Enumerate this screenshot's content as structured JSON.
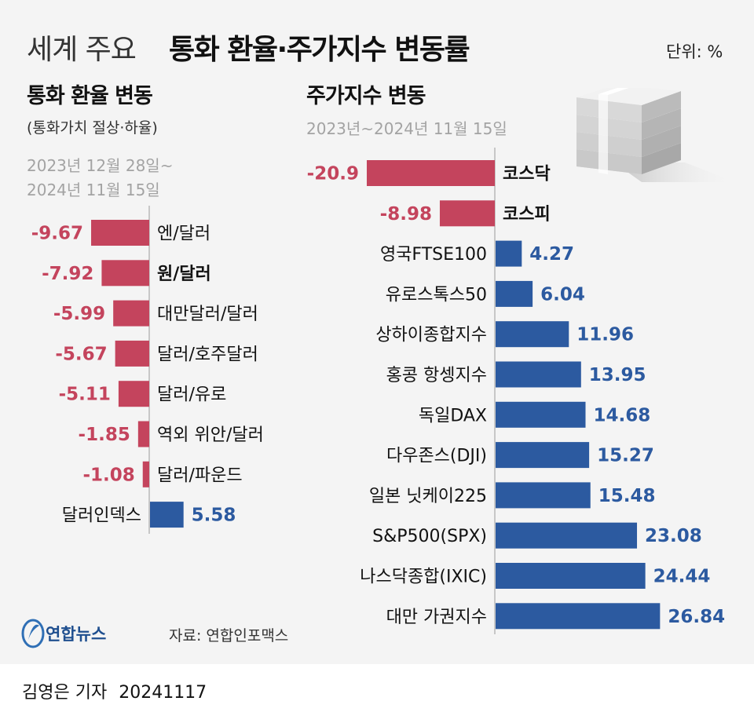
{
  "title": {
    "light": "세계 주요",
    "bold": "통화 환율·주가지수 변동률"
  },
  "unit": "단위: %",
  "currency": {
    "title": "통화 환율 변동",
    "subtitle": "(통화가치 절상·하율)",
    "date_line1": "2023년 12월 28일~",
    "date_line2": "2024년 11월 15일"
  },
  "stock": {
    "title": "주가지수 변동",
    "date": "2023년~2024년 11월 15일"
  },
  "chart_data": [
    {
      "type": "bar",
      "orientation": "horizontal",
      "title": "통화 환율 변동",
      "categories": [
        "엔/달러",
        "원/달러",
        "대만달러/달러",
        "달러/호주달러",
        "달러/유로",
        "역외 위안/달러",
        "달러/파운드",
        "달러인덱스"
      ],
      "values": [
        -9.67,
        -7.92,
        -5.99,
        -5.67,
        -5.11,
        -1.85,
        -1.08,
        5.58
      ],
      "labels": [
        "-9.67",
        "-7.92",
        "-5.99",
        "-5.67",
        "-5.11",
        "-1.85",
        "-1.08",
        "5.58"
      ],
      "highlight": [
        "원/달러"
      ],
      "colors": {
        "negative": "#c4445d",
        "positive": "#2c5aa0"
      }
    },
    {
      "type": "bar",
      "orientation": "horizontal",
      "title": "주가지수 변동",
      "categories": [
        "코스닥",
        "코스피",
        "영국FTSE100",
        "유로스톡스50",
        "상하이종합지수",
        "홍콩 항셍지수",
        "독일DAX",
        "다우존스(DJI)",
        "일본 닛케이225",
        "S&P500(SPX)",
        "나스닥종합(IXIC)",
        "대만 가권지수"
      ],
      "values": [
        -20.9,
        -8.98,
        4.27,
        6.04,
        11.96,
        13.95,
        14.68,
        15.27,
        15.48,
        23.08,
        24.44,
        26.84
      ],
      "labels": [
        "-20.9",
        "-8.98",
        "4.27",
        "6.04",
        "11.96",
        "13.95",
        "14.68",
        "15.27",
        "15.48",
        "23.08",
        "24.44",
        "26.84"
      ],
      "highlight": [
        "코스닥",
        "코스피"
      ],
      "colors": {
        "negative": "#c4445d",
        "positive": "#2c5aa0"
      }
    }
  ],
  "logo": {
    "text": "연합뉴스"
  },
  "source": "자료: 연합인포맥스",
  "credit": {
    "author": "김영은 기자",
    "date": "20241117"
  }
}
